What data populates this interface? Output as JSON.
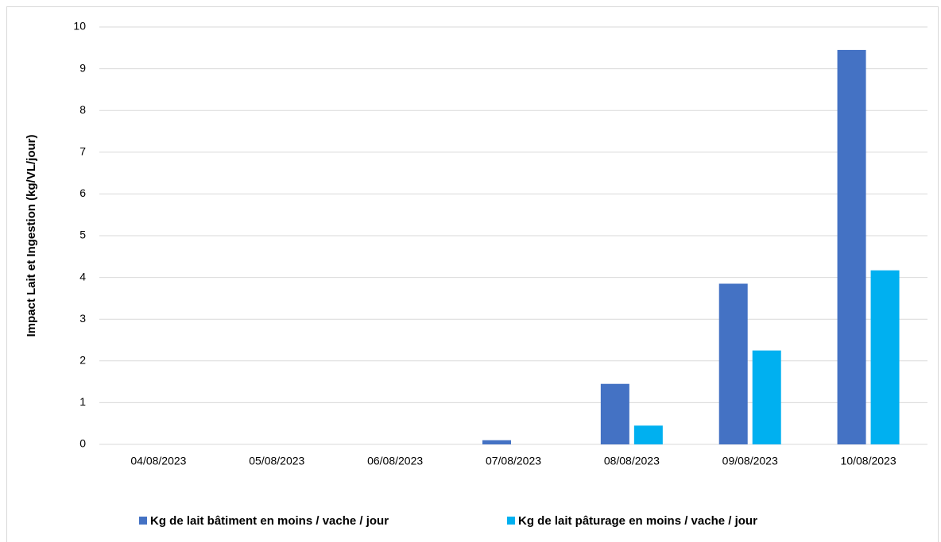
{
  "chart_data": {
    "type": "bar",
    "y_label": "Impact Lait et Ingestion (kg/VL/jour)",
    "categories": [
      "04/08/2023",
      "05/08/2023",
      "06/08/2023",
      "07/08/2023",
      "08/08/2023",
      "09/08/2023",
      "10/08/2023"
    ],
    "series": [
      {
        "name": "Kg de lait bâtiment en moins / vache / jour",
        "color": "#4472c4",
        "values": [
          0,
          0,
          0,
          0.1,
          1.45,
          3.85,
          9.45
        ]
      },
      {
        "name": "Kg de lait pâturage en moins / vache / jour",
        "color": "#00b0f0",
        "values": [
          0,
          0,
          0,
          0,
          0.45,
          2.25,
          4.17
        ]
      }
    ],
    "ylim": [
      0,
      10
    ],
    "yticks": [
      0,
      1,
      2,
      3,
      4,
      5,
      6,
      7,
      8,
      9,
      10
    ],
    "grid": true,
    "legend": "bottom"
  }
}
